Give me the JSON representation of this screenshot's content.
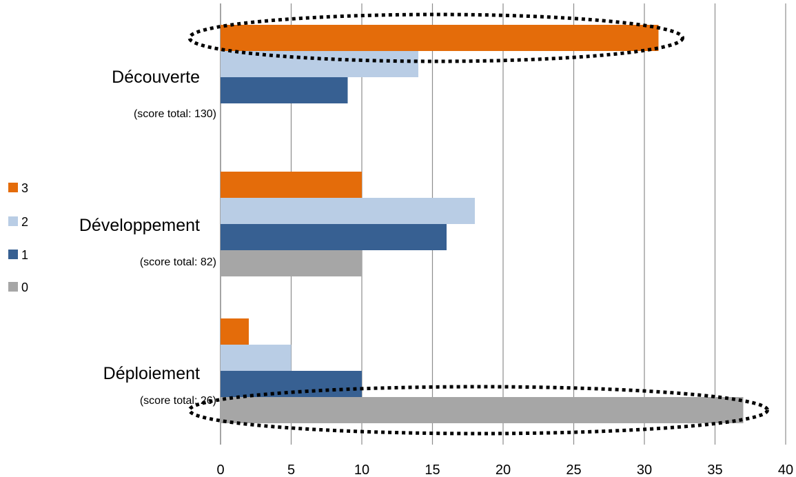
{
  "chart_data": {
    "type": "bar",
    "orientation": "horizontal",
    "categories": [
      {
        "name": "Découverte",
        "subtitle": "(score total: 130)"
      },
      {
        "name": "Développement",
        "subtitle": "(score total:  82)"
      },
      {
        "name": "Déploiement",
        "subtitle": "(score total: 26)"
      }
    ],
    "series": [
      {
        "name": "3",
        "color": "#E46C0A",
        "values": [
          31,
          10,
          2
        ]
      },
      {
        "name": "2",
        "color": "#B9CDE5",
        "values": [
          14,
          18,
          5
        ]
      },
      {
        "name": "1",
        "color": "#376092",
        "values": [
          9,
          16,
          10
        ]
      },
      {
        "name": "0",
        "color": "#A6A6A6",
        "values": [
          0,
          10,
          37
        ]
      }
    ],
    "xlim": [
      0,
      40
    ],
    "xticks": [
      0,
      5,
      10,
      15,
      20,
      25,
      30,
      35,
      40
    ],
    "grid": true,
    "legend_position": "left",
    "highlights": [
      {
        "category": "Découverte",
        "series": "3",
        "shape": "dotted-ellipse"
      },
      {
        "category": "Déploiement",
        "series": "0",
        "shape": "dotted-ellipse"
      }
    ]
  }
}
